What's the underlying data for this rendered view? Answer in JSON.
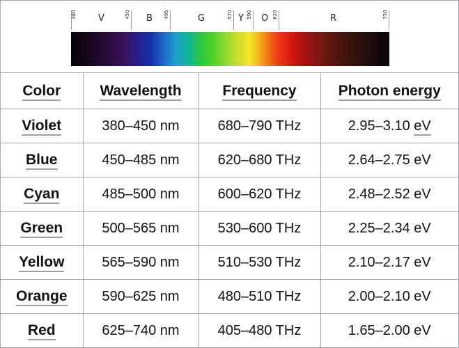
{
  "spectrum": {
    "tick_labels": [
      "380",
      "450",
      "495",
      "570",
      "590",
      "620",
      "750"
    ],
    "band_letters": [
      "V",
      "B",
      "G",
      "Y",
      "O",
      "R"
    ]
  },
  "table": {
    "headers": [
      "Color",
      "Wavelength",
      "Frequency",
      "Photon energy"
    ],
    "rows": [
      {
        "color": "Violet",
        "wavelength": "380–450 nm",
        "frequency": "680–790 THz",
        "energy_value": "2.95–3.10",
        "energy_unit": "eV"
      },
      {
        "color": "Blue",
        "wavelength": "450–485 nm",
        "frequency": "620–680 THz",
        "energy_value": "2.64–2.75",
        "energy_unit": "eV"
      },
      {
        "color": "Cyan",
        "wavelength": "485–500 nm",
        "frequency": "600–620 THz",
        "energy_value": "2.48–2.52",
        "energy_unit": "eV"
      },
      {
        "color": "Green",
        "wavelength": "500–565 nm",
        "frequency": "530–600 THz",
        "energy_value": "2.25–2.34",
        "energy_unit": "eV"
      },
      {
        "color": "Yellow",
        "wavelength": "565–590 nm",
        "frequency": "510–530 THz",
        "energy_value": "2.10–2.17",
        "energy_unit": "eV"
      },
      {
        "color": "Orange",
        "wavelength": "590–625 nm",
        "frequency": "480–510 THz",
        "energy_value": "2.00–2.10",
        "energy_unit": "eV"
      },
      {
        "color": "Red",
        "wavelength": "625–740 nm",
        "frequency": "405–480 THz",
        "energy_value": "1.65–2.00",
        "energy_unit": "eV"
      }
    ]
  }
}
